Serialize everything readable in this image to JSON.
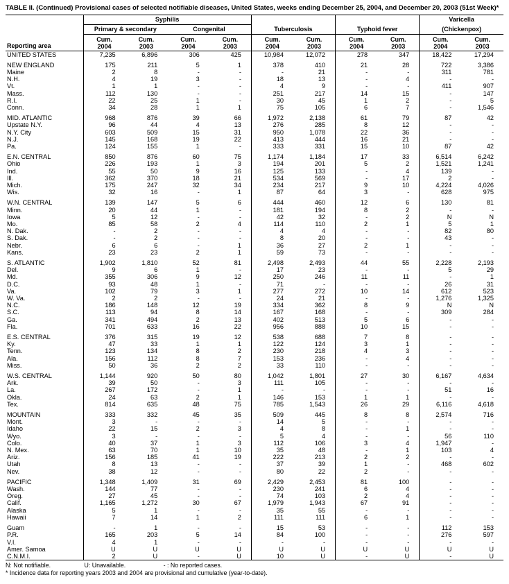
{
  "title": "TABLE II. (Continued) Provisional cases of selected notifiable diseases, United States, weeks ending December 25, 2004, and December 20, 2003 (51st Week)*",
  "header": {
    "reporting_area": "Reporting area",
    "syphilis": "Syphilis",
    "primary_secondary": "Primary & secondary",
    "congenital": "Congenital",
    "tuberculosis": "Tuberculosis",
    "typhoid_fever": "Typhoid fever",
    "varicella": "Varicella",
    "chickenpox": "(Chickenpox)",
    "cum": "Cum.",
    "y2004": "2004",
    "y2003": "2003"
  },
  "sections": [
    {
      "rows": [
        {
          "area": "UNITED STATES",
          "values": [
            "7,235",
            "6,896",
            "306",
            "425",
            "10,984",
            "12,072",
            "278",
            "347",
            "18,422",
            "17,294"
          ]
        }
      ]
    },
    {
      "rows": [
        {
          "area": "NEW ENGLAND",
          "values": [
            "175",
            "211",
            "5",
            "1",
            "378",
            "410",
            "21",
            "28",
            "722",
            "3,386"
          ]
        },
        {
          "area": "Maine",
          "values": [
            "2",
            "8",
            "-",
            "-",
            "-",
            "21",
            "-",
            "-",
            "311",
            "781"
          ]
        },
        {
          "area": "N.H.",
          "values": [
            "4",
            "19",
            "3",
            "-",
            "18",
            "13",
            "-",
            "4",
            "-",
            "-"
          ]
        },
        {
          "area": "Vt.",
          "values": [
            "1",
            "1",
            "-",
            "-",
            "4",
            "9",
            "-",
            "-",
            "411",
            "907"
          ]
        },
        {
          "area": "Mass.",
          "values": [
            "112",
            "130",
            "-",
            "-",
            "251",
            "217",
            "14",
            "15",
            "-",
            "147"
          ]
        },
        {
          "area": "R.I.",
          "values": [
            "22",
            "25",
            "1",
            "-",
            "30",
            "45",
            "1",
            "2",
            "-",
            "5"
          ]
        },
        {
          "area": "Conn.",
          "values": [
            "34",
            "28",
            "1",
            "1",
            "75",
            "105",
            "6",
            "7",
            "-",
            "1,546"
          ]
        }
      ]
    },
    {
      "rows": [
        {
          "area": "MID. ATLANTIC",
          "values": [
            "968",
            "876",
            "39",
            "66",
            "1,972",
            "2,138",
            "61",
            "79",
            "87",
            "42"
          ]
        },
        {
          "area": "Upstate N.Y.",
          "values": [
            "96",
            "44",
            "4",
            "13",
            "276",
            "285",
            "8",
            "12",
            "-",
            "-"
          ]
        },
        {
          "area": "N.Y. City",
          "values": [
            "603",
            "509",
            "15",
            "31",
            "950",
            "1,078",
            "22",
            "36",
            "-",
            "-"
          ]
        },
        {
          "area": "N.J.",
          "values": [
            "145",
            "168",
            "19",
            "22",
            "413",
            "444",
            "16",
            "21",
            "-",
            "-"
          ]
        },
        {
          "area": "Pa.",
          "values": [
            "124",
            "155",
            "1",
            "-",
            "333",
            "331",
            "15",
            "10",
            "87",
            "42"
          ]
        }
      ]
    },
    {
      "rows": [
        {
          "area": "E.N. CENTRAL",
          "values": [
            "850",
            "876",
            "60",
            "75",
            "1,174",
            "1,184",
            "17",
            "33",
            "6,514",
            "6,242"
          ]
        },
        {
          "area": "Ohio",
          "values": [
            "226",
            "193",
            "1",
            "3",
            "194",
            "201",
            "5",
            "2",
            "1,521",
            "1,241"
          ]
        },
        {
          "area": "Ind.",
          "values": [
            "55",
            "50",
            "9",
            "16",
            "125",
            "133",
            "-",
            "4",
            "139",
            "-"
          ]
        },
        {
          "area": "Ill.",
          "values": [
            "362",
            "370",
            "18",
            "21",
            "534",
            "569",
            "-",
            "17",
            "2",
            "-"
          ]
        },
        {
          "area": "Mich.",
          "values": [
            "175",
            "247",
            "32",
            "34",
            "234",
            "217",
            "9",
            "10",
            "4,224",
            "4,026"
          ]
        },
        {
          "area": "Wis.",
          "values": [
            "32",
            "16",
            "-",
            "1",
            "87",
            "64",
            "3",
            "-",
            "628",
            "975"
          ]
        }
      ]
    },
    {
      "rows": [
        {
          "area": "W.N. CENTRAL",
          "values": [
            "139",
            "147",
            "5",
            "6",
            "444",
            "460",
            "12",
            "6",
            "130",
            "81"
          ]
        },
        {
          "area": "Minn.",
          "values": [
            "20",
            "44",
            "1",
            "-",
            "181",
            "194",
            "8",
            "2",
            "-",
            "-"
          ]
        },
        {
          "area": "Iowa",
          "values": [
            "5",
            "12",
            "-",
            "-",
            "42",
            "32",
            "-",
            "2",
            "N",
            "N"
          ]
        },
        {
          "area": "Mo.",
          "values": [
            "85",
            "58",
            "2",
            "4",
            "114",
            "110",
            "2",
            "1",
            "5",
            "1"
          ]
        },
        {
          "area": "N. Dak.",
          "values": [
            "-",
            "2",
            "-",
            "-",
            "4",
            "4",
            "-",
            "-",
            "82",
            "80"
          ]
        },
        {
          "area": "S. Dak.",
          "values": [
            "-",
            "2",
            "-",
            "-",
            "8",
            "20",
            "-",
            "-",
            "43",
            "-"
          ]
        },
        {
          "area": "Nebr.",
          "values": [
            "6",
            "6",
            "-",
            "1",
            "36",
            "27",
            "2",
            "1",
            "-",
            "-"
          ]
        },
        {
          "area": "Kans.",
          "values": [
            "23",
            "23",
            "2",
            "1",
            "59",
            "73",
            "-",
            "-",
            "-",
            "-"
          ]
        }
      ]
    },
    {
      "rows": [
        {
          "area": "S. ATLANTIC",
          "values": [
            "1,902",
            "1,810",
            "52",
            "81",
            "2,498",
            "2,493",
            "44",
            "55",
            "2,228",
            "2,193"
          ]
        },
        {
          "area": "Del.",
          "values": [
            "9",
            "6",
            "1",
            "-",
            "17",
            "23",
            "-",
            "-",
            "5",
            "29"
          ]
        },
        {
          "area": "Md.",
          "values": [
            "355",
            "306",
            "9",
            "12",
            "250",
            "246",
            "11",
            "11",
            "-",
            "1"
          ]
        },
        {
          "area": "D.C.",
          "values": [
            "93",
            "48",
            "1",
            "-",
            "71",
            "-",
            "-",
            "-",
            "26",
            "31"
          ]
        },
        {
          "area": "Va.",
          "values": [
            "102",
            "79",
            "3",
            "1",
            "277",
            "272",
            "10",
            "14",
            "612",
            "523"
          ]
        },
        {
          "area": "W. Va.",
          "values": [
            "2",
            "2",
            "-",
            "-",
            "24",
            "21",
            "-",
            "-",
            "1,276",
            "1,325"
          ]
        },
        {
          "area": "N.C.",
          "values": [
            "186",
            "148",
            "12",
            "19",
            "334",
            "362",
            "8",
            "9",
            "N",
            "N"
          ]
        },
        {
          "area": "S.C.",
          "values": [
            "113",
            "94",
            "8",
            "14",
            "167",
            "168",
            "-",
            "-",
            "309",
            "284"
          ]
        },
        {
          "area": "Ga.",
          "values": [
            "341",
            "494",
            "2",
            "13",
            "402",
            "513",
            "5",
            "6",
            "-",
            "-"
          ]
        },
        {
          "area": "Fla.",
          "values": [
            "701",
            "633",
            "16",
            "22",
            "956",
            "888",
            "10",
            "15",
            "-",
            "-"
          ]
        }
      ]
    },
    {
      "rows": [
        {
          "area": "E.S. CENTRAL",
          "values": [
            "376",
            "315",
            "19",
            "12",
            "538",
            "688",
            "7",
            "8",
            "-",
            "-"
          ]
        },
        {
          "area": "Ky.",
          "values": [
            "47",
            "33",
            "1",
            "1",
            "122",
            "124",
            "3",
            "1",
            "-",
            "-"
          ]
        },
        {
          "area": "Tenn.",
          "values": [
            "123",
            "134",
            "8",
            "2",
            "230",
            "218",
            "4",
            "3",
            "-",
            "-"
          ]
        },
        {
          "area": "Ala.",
          "values": [
            "156",
            "112",
            "8",
            "7",
            "153",
            "236",
            "-",
            "4",
            "-",
            "-"
          ]
        },
        {
          "area": "Miss.",
          "values": [
            "50",
            "36",
            "2",
            "2",
            "33",
            "110",
            "-",
            "-",
            "-",
            "-"
          ]
        }
      ]
    },
    {
      "rows": [
        {
          "area": "W.S. CENTRAL",
          "values": [
            "1,144",
            "920",
            "50",
            "80",
            "1,042",
            "1,801",
            "27",
            "30",
            "6,167",
            "4,634"
          ]
        },
        {
          "area": "Ark.",
          "values": [
            "39",
            "50",
            "-",
            "3",
            "111",
            "105",
            "-",
            "-",
            "-",
            "-"
          ]
        },
        {
          "area": "La.",
          "values": [
            "267",
            "172",
            "-",
            "1",
            "-",
            "-",
            "-",
            "-",
            "51",
            "16"
          ]
        },
        {
          "area": "Okla.",
          "values": [
            "24",
            "63",
            "2",
            "1",
            "146",
            "153",
            "1",
            "1",
            "-",
            "-"
          ]
        },
        {
          "area": "Tex.",
          "values": [
            "814",
            "635",
            "48",
            "75",
            "785",
            "1,543",
            "26",
            "29",
            "6,116",
            "4,618"
          ]
        }
      ]
    },
    {
      "rows": [
        {
          "area": "MOUNTAIN",
          "values": [
            "333",
            "332",
            "45",
            "35",
            "509",
            "445",
            "8",
            "8",
            "2,574",
            "716"
          ]
        },
        {
          "area": "Mont.",
          "values": [
            "3",
            "-",
            "-",
            "-",
            "14",
            "5",
            "-",
            "-",
            "-",
            "-"
          ]
        },
        {
          "area": "Idaho",
          "values": [
            "22",
            "15",
            "2",
            "3",
            "4",
            "8",
            "-",
            "1",
            "-",
            "-"
          ]
        },
        {
          "area": "Wyo.",
          "values": [
            "3",
            "-",
            "-",
            "-",
            "5",
            "4",
            "-",
            "-",
            "56",
            "110"
          ]
        },
        {
          "area": "Colo.",
          "values": [
            "40",
            "37",
            "1",
            "3",
            "112",
            "106",
            "3",
            "4",
            "1,947",
            "-"
          ]
        },
        {
          "area": "N. Mex.",
          "values": [
            "63",
            "70",
            "1",
            "10",
            "35",
            "48",
            "-",
            "1",
            "103",
            "4"
          ]
        },
        {
          "area": "Ariz.",
          "values": [
            "156",
            "185",
            "41",
            "19",
            "222",
            "213",
            "2",
            "2",
            "-",
            "-"
          ]
        },
        {
          "area": "Utah",
          "values": [
            "8",
            "13",
            "-",
            "-",
            "37",
            "39",
            "1",
            "-",
            "468",
            "602"
          ]
        },
        {
          "area": "Nev.",
          "values": [
            "38",
            "12",
            "-",
            "-",
            "80",
            "22",
            "2",
            "-",
            "-",
            "-"
          ]
        }
      ]
    },
    {
      "rows": [
        {
          "area": "PACIFIC",
          "values": [
            "1,348",
            "1,409",
            "31",
            "69",
            "2,429",
            "2,453",
            "81",
            "100",
            "-",
            "-"
          ]
        },
        {
          "area": "Wash.",
          "values": [
            "144",
            "77",
            "-",
            "-",
            "230",
            "241",
            "6",
            "4",
            "-",
            "-"
          ]
        },
        {
          "area": "Oreg.",
          "values": [
            "27",
            "45",
            "-",
            "-",
            "74",
            "103",
            "2",
            "4",
            "-",
            "-"
          ]
        },
        {
          "area": "Calif.",
          "values": [
            "1,165",
            "1,272",
            "30",
            "67",
            "1,979",
            "1,943",
            "67",
            "91",
            "-",
            "-"
          ]
        },
        {
          "area": "Alaska",
          "values": [
            "5",
            "1",
            "-",
            "-",
            "35",
            "55",
            "-",
            "-",
            "-",
            "-"
          ]
        },
        {
          "area": "Hawaii",
          "values": [
            "7",
            "14",
            "1",
            "2",
            "111",
            "111",
            "6",
            "1",
            "-",
            "-"
          ]
        }
      ]
    },
    {
      "rows": [
        {
          "area": "Guam",
          "values": [
            "-",
            "1",
            "-",
            "-",
            "15",
            "53",
            "-",
            "-",
            "112",
            "153"
          ]
        },
        {
          "area": "P.R.",
          "values": [
            "165",
            "203",
            "5",
            "14",
            "84",
            "100",
            "-",
            "-",
            "276",
            "597"
          ]
        },
        {
          "area": "V.I.",
          "values": [
            "4",
            "1",
            "-",
            "-",
            "-",
            "-",
            "-",
            "-",
            "-",
            "-"
          ]
        },
        {
          "area": "Amer. Samoa",
          "values": [
            "U",
            "U",
            "U",
            "U",
            "U",
            "U",
            "U",
            "U",
            "U",
            "U"
          ]
        },
        {
          "area": "C.N.M.I.",
          "values": [
            "2",
            "U",
            "-",
            "U",
            "10",
            "U",
            "-",
            "U",
            "-",
            "U"
          ]
        }
      ]
    }
  ],
  "footnotes": {
    "legend_n": "N: Not notifiable.",
    "legend_u": "U: Unavailable.",
    "legend_dash": "- : No reported cases.",
    "asterisk": "* Incidence data for reporting years 2003 and 2004 are provisional and cumulative (year-to-date)."
  }
}
